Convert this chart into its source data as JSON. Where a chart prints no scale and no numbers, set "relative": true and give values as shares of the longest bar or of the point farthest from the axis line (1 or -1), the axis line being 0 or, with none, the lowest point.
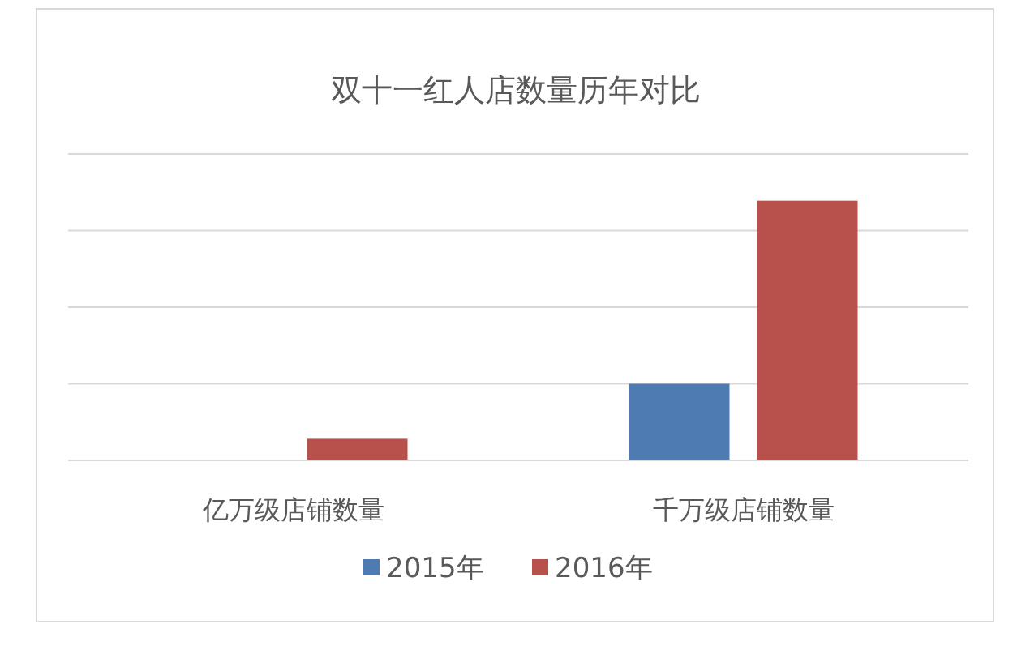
{
  "chart_data": {
    "type": "bar",
    "title": "双十一红人店数量历年对比",
    "relative": true,
    "grid": true,
    "legend": "bottom",
    "categories": [
      "亿万级店铺数量",
      "千万级店铺数量"
    ],
    "series": [
      {
        "name": "2015年",
        "color": "#4f7bb3",
        "values": [
          0,
          0.295
        ]
      },
      {
        "name": "2016年",
        "color": "#b8514c",
        "values": [
          0.083,
          1
        ]
      }
    ]
  }
}
